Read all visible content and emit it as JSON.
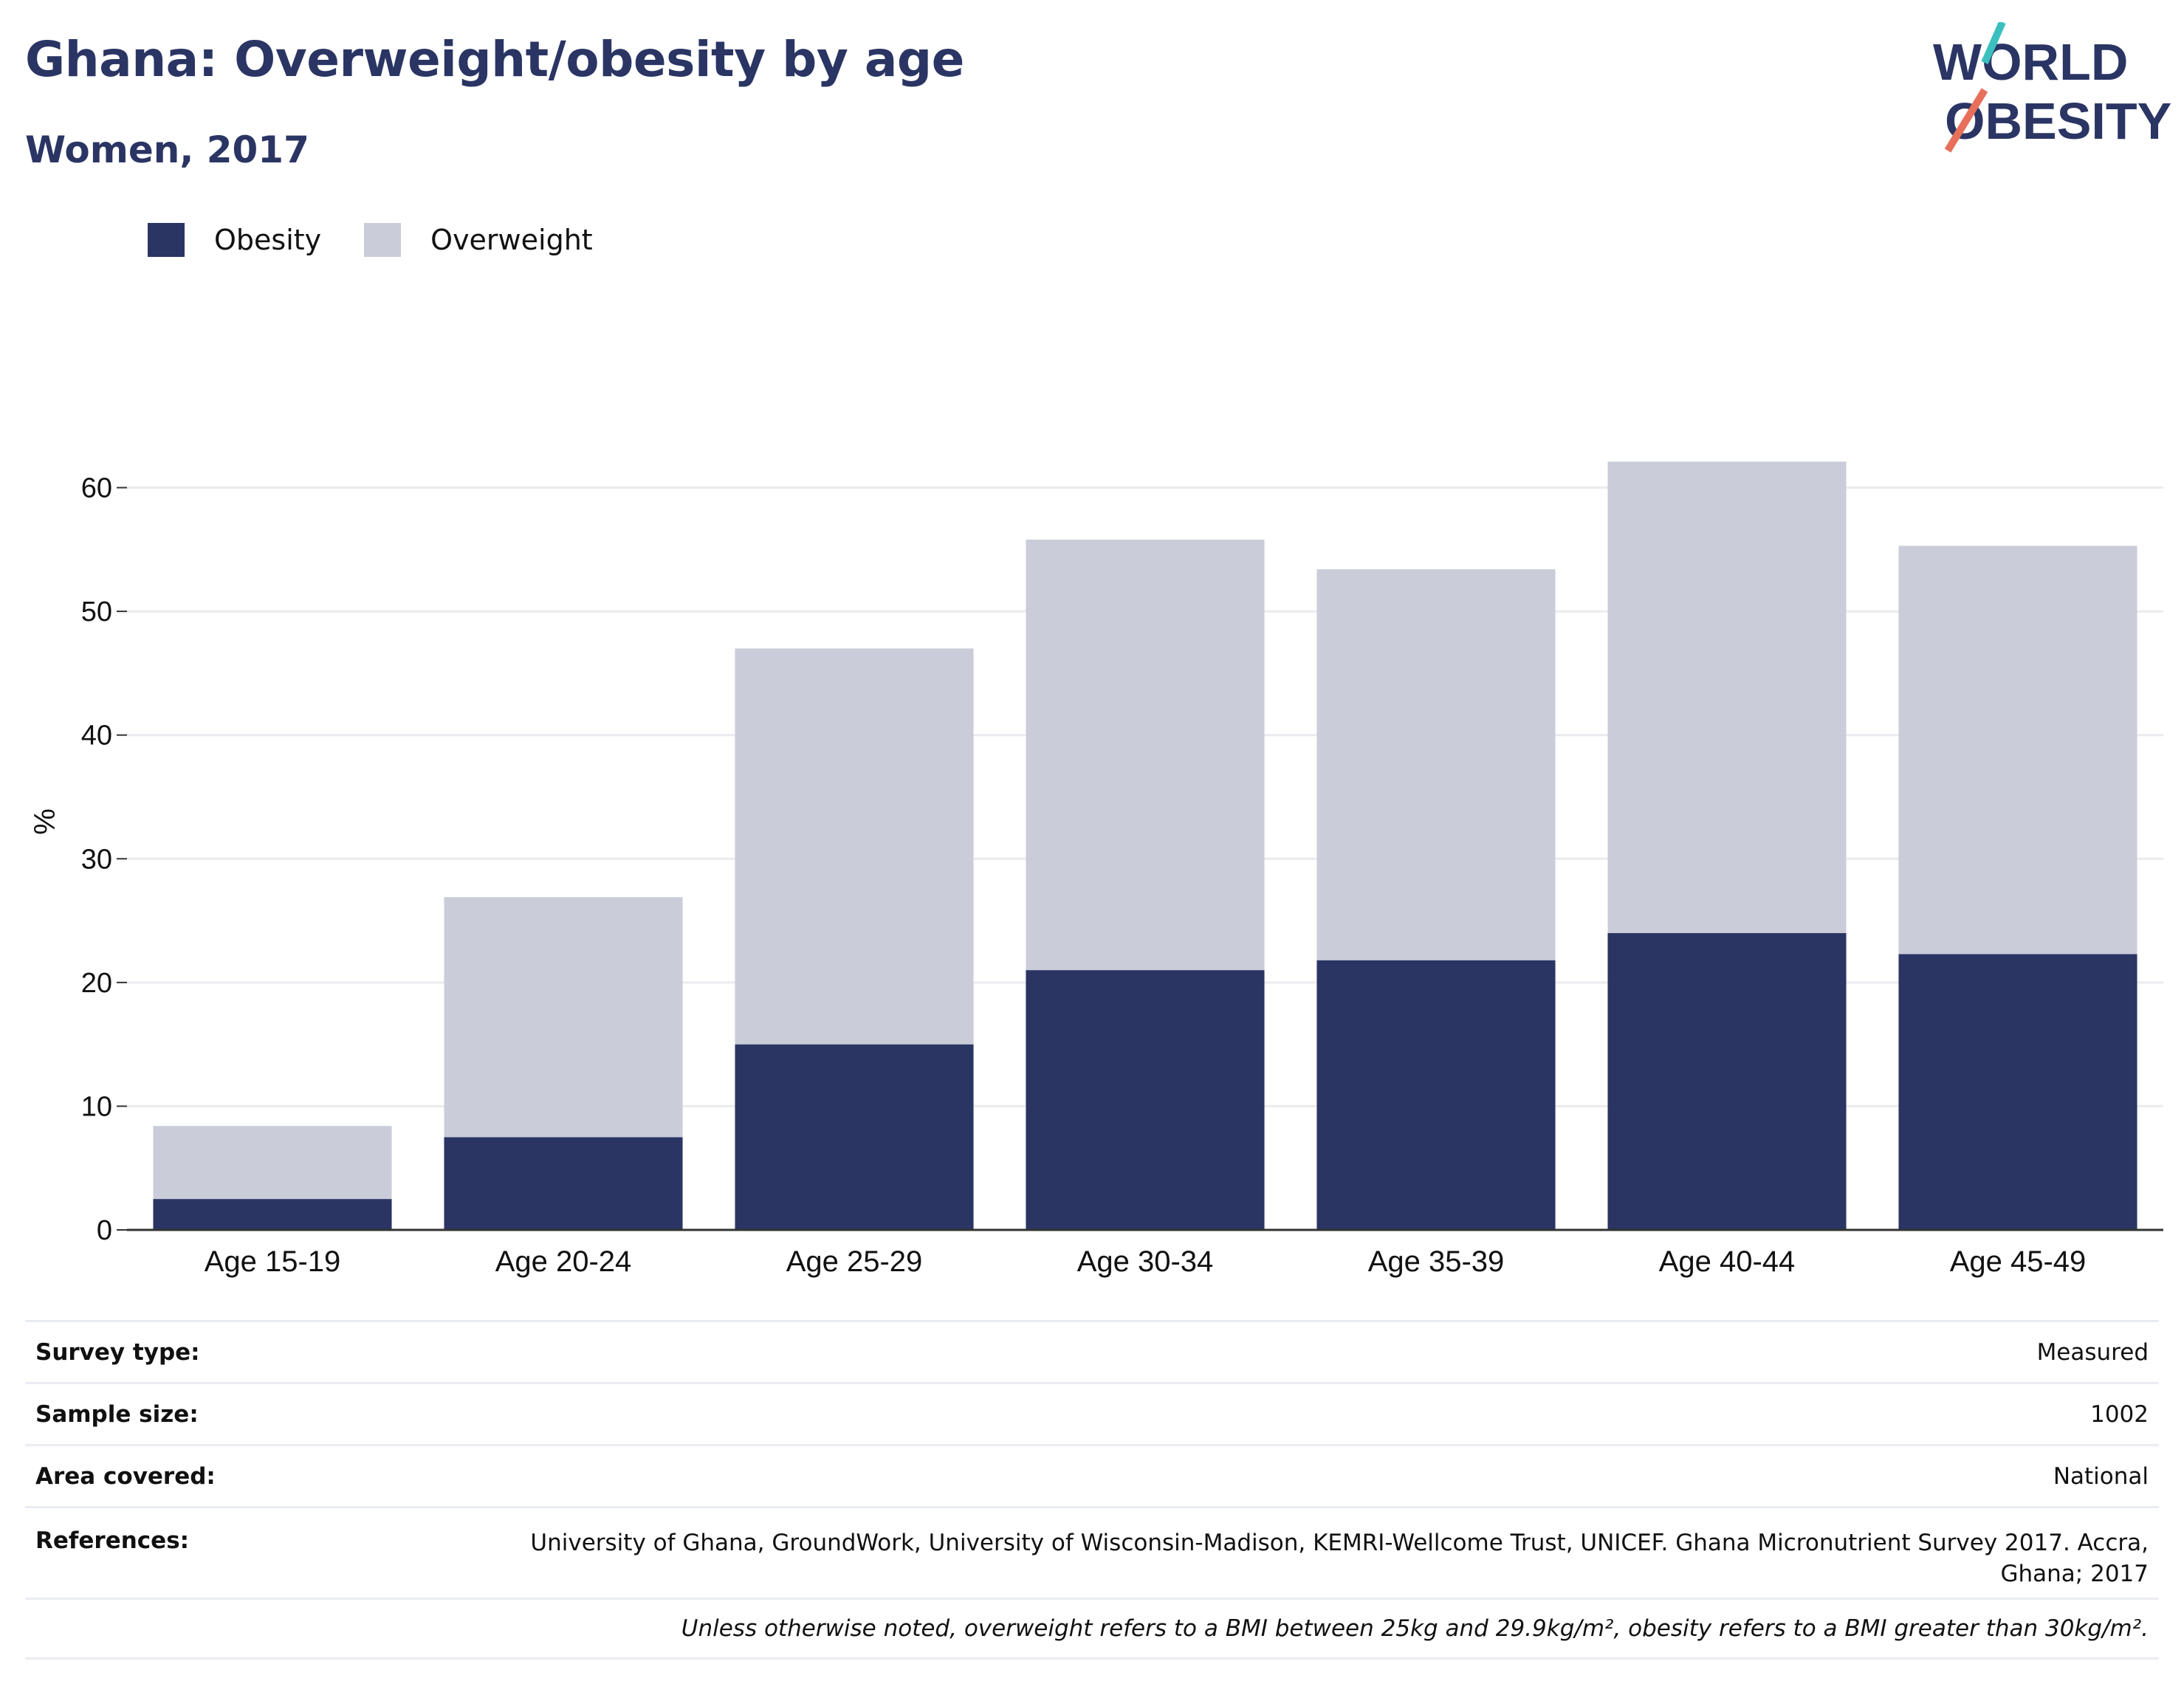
{
  "header": {
    "title": "Ghana: Overweight/obesity by age",
    "subtitle": "Women, 2017"
  },
  "logo": {
    "line1": "WORLD",
    "line2": "OBESITY",
    "colors": {
      "text": "#2a3564",
      "slash_top": "#3bbfbf",
      "slash_bottom": "#e8705a"
    }
  },
  "legend": [
    {
      "name": "Obesity",
      "color": "#2a3564"
    },
    {
      "name": "Overweight",
      "color": "#cacdd9"
    }
  ],
  "chart_data": {
    "type": "bar",
    "stacked": true,
    "categories": [
      "Age 15-19",
      "Age 20-24",
      "Age 25-29",
      "Age 30-34",
      "Age 35-39",
      "Age 40-44",
      "Age 45-49"
    ],
    "series": [
      {
        "name": "Obesity",
        "color": "#2a3564",
        "values": [
          2.5,
          7.5,
          15.0,
          21.0,
          21.8,
          24.0,
          22.3
        ]
      },
      {
        "name": "Overweight",
        "color": "#cacdd9",
        "values": [
          5.9,
          19.4,
          32.0,
          34.8,
          31.6,
          38.1,
          33.0
        ]
      }
    ],
    "ylabel": "%",
    "xlabel": "",
    "ylim": [
      0,
      66
    ],
    "yticks": [
      0,
      10,
      20,
      30,
      40,
      50,
      60
    ],
    "grid": true,
    "legend_position": "top-left"
  },
  "meta": {
    "survey_type": {
      "label": "Survey type:",
      "value": "Measured"
    },
    "sample_size": {
      "label": "Sample size:",
      "value": "1002"
    },
    "area_covered": {
      "label": "Area covered:",
      "value": "National"
    },
    "references": {
      "label": "References:",
      "value": "University of Ghana, GroundWork, University of Wisconsin-Madison, KEMRI-Wellcome Trust, UNICEF. Ghana Micronutrient Survey 2017. Accra, Ghana; 2017"
    },
    "note": "Unless otherwise noted, overweight refers to a BMI between 25kg and 29.9kg/m², obesity refers to a BMI greater than 30kg/m²."
  }
}
